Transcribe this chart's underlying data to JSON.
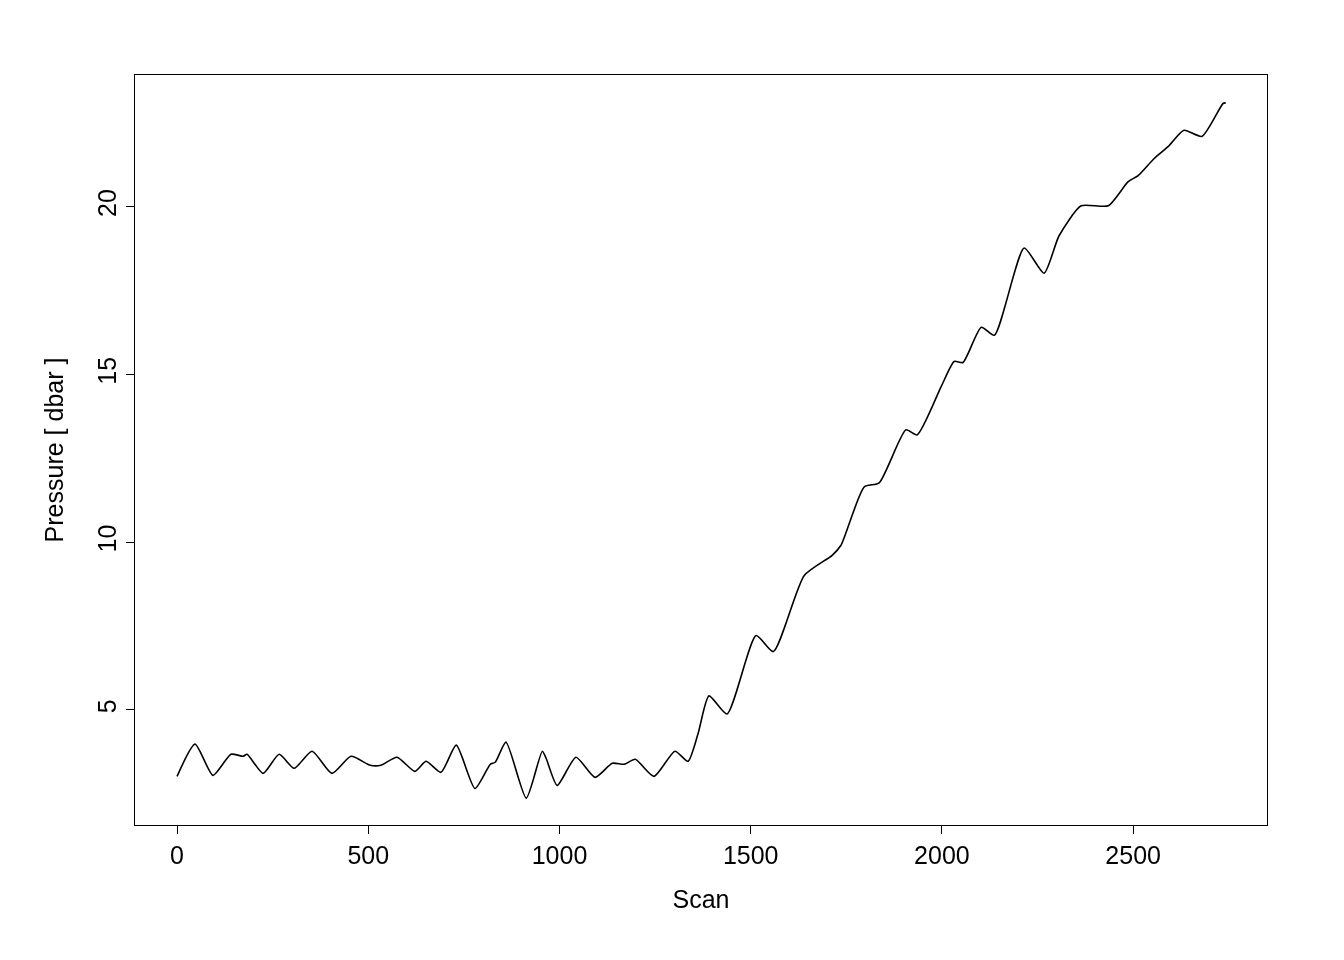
{
  "chart_data": {
    "type": "line",
    "xlabel": "Scan",
    "ylabel": "Pressure [ dbar ]",
    "x": [
      0,
      47,
      94,
      141,
      173,
      183,
      225,
      267,
      306,
      353,
      405,
      455,
      505,
      533,
      575,
      622,
      651,
      690,
      730,
      779,
      819,
      832,
      860,
      913,
      955,
      965,
      994,
      1043,
      1093,
      1138,
      1169,
      1198,
      1247,
      1302,
      1336,
      1362,
      1391,
      1438,
      1514,
      1559,
      1640,
      1713,
      1736,
      1797,
      1836,
      1906,
      1935,
      1998,
      2032,
      2055,
      2103,
      2137,
      2215,
      2267,
      2306,
      2364,
      2435,
      2487,
      2513,
      2555,
      2592,
      2633,
      2680,
      2735,
      2742
    ],
    "series": [
      {
        "color": "#000000",
        "values": [
          3.02,
          3.98,
          3.05,
          3.68,
          3.62,
          3.68,
          3.11,
          3.68,
          3.26,
          3.77,
          3.11,
          3.62,
          3.35,
          3.35,
          3.59,
          3.17,
          3.47,
          3.14,
          3.95,
          2.66,
          3.38,
          3.44,
          4.04,
          2.37,
          3.77,
          3.56,
          2.75,
          3.59,
          2.99,
          3.41,
          3.38,
          3.53,
          3.02,
          3.77,
          3.47,
          4.28,
          5.42,
          4.88,
          7.22,
          6.74,
          9.01,
          9.61,
          9.91,
          11.65,
          11.77,
          13.35,
          13.2,
          14.64,
          15.39,
          15.36,
          16.41,
          16.17,
          18.77,
          18.02,
          19.13,
          20.03,
          20.03,
          20.75,
          20.93,
          21.44,
          21.8,
          22.28,
          22.1,
          23.08,
          23.1
        ]
      }
    ],
    "xlim": [
      -110,
      2850
    ],
    "ylim": [
      1.57,
      23.93
    ],
    "xticks": [
      0,
      500,
      1000,
      1500,
      2000,
      2500
    ],
    "yticks": [
      5,
      10,
      15,
      20
    ],
    "grid": false,
    "marker": "none",
    "line_style": "solid"
  }
}
